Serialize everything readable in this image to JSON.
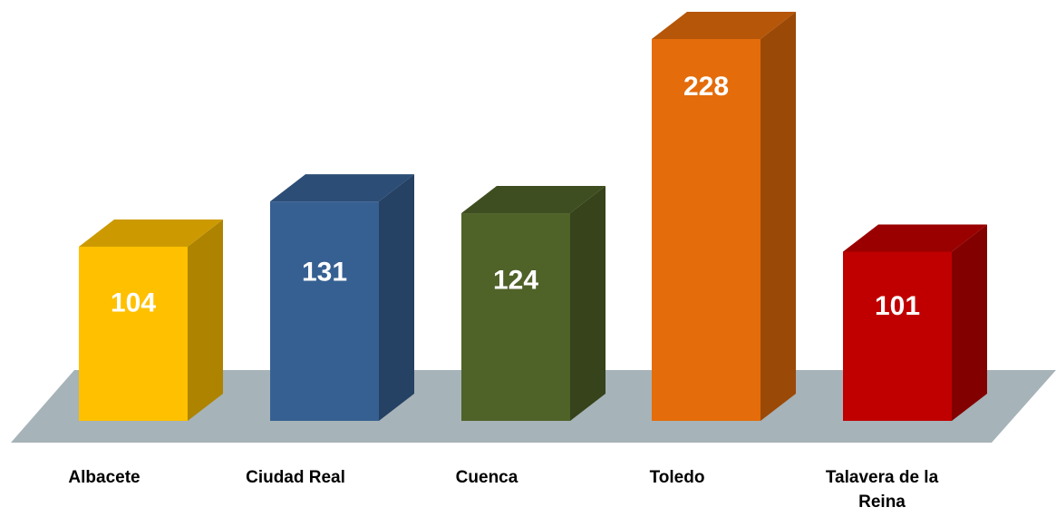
{
  "chart_data": {
    "type": "bar",
    "style": "3d-column",
    "categories": [
      "Albacete",
      "Ciudad Real",
      "Cuenca",
      "Toledo",
      "Talavera de la Reina"
    ],
    "category_lines": [
      [
        "Albacete"
      ],
      [
        "Ciudad Real"
      ],
      [
        "Cuenca"
      ],
      [
        "Toledo"
      ],
      [
        "Talavera de la",
        "Reina"
      ]
    ],
    "values": [
      104,
      131,
      124,
      228,
      101
    ],
    "value_labels": [
      "104",
      "131",
      "124",
      "228",
      "101"
    ],
    "colors": [
      "#FFC000",
      "#376092",
      "#4F6228",
      "#E46C0A",
      "#C00000"
    ],
    "floor_color": "#A6B3B8",
    "title": "",
    "xlabel": "",
    "ylabel": "",
    "ylim": [
      0,
      228
    ],
    "grid": false,
    "legend": "none"
  }
}
